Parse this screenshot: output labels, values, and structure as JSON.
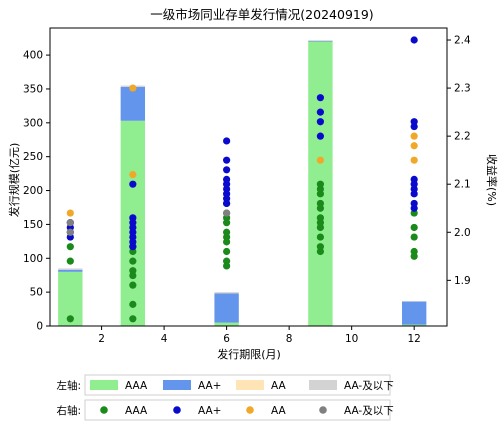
{
  "chart_data": {
    "type": "bar",
    "title": "一级市场同业存单发行情况(20240919)",
    "xlabel": "发行期限(月)",
    "ylabel_left": "发行规模(亿元)",
    "ylabel_right": "收益率(%)",
    "xlim": [
      0.35,
      13.05
    ],
    "ylim_left": [
      0,
      440
    ],
    "ylim_right": [
      1.805,
      2.425
    ],
    "x_ticks": [
      2,
      4,
      6,
      8,
      10,
      12
    ],
    "y_left_ticks": [
      0,
      50,
      100,
      150,
      200,
      250,
      300,
      350,
      400
    ],
    "y_right_ticks": [
      1.9,
      2.0,
      2.1,
      2.2,
      2.3,
      2.4
    ],
    "categories": [
      1,
      3,
      6,
      9,
      12
    ],
    "bar_series": [
      {
        "name": "AAA",
        "color": "#90ee90",
        "values": [
          80,
          303,
          5,
          420,
          2
        ]
      },
      {
        "name": "AA+",
        "color": "#6495ed",
        "values": [
          3,
          50,
          43,
          1,
          34
        ]
      },
      {
        "name": "AA",
        "color": "#ffe4b5",
        "values": [
          0,
          0,
          0,
          0,
          0
        ]
      },
      {
        "name": "AA-及以下",
        "color": "#d3d3d3",
        "values": [
          2,
          2,
          2,
          1,
          1
        ]
      }
    ],
    "scatter_series": [
      {
        "name": "AAA",
        "color": "#1a8a1a",
        "points": [
          [
            1,
            1.82
          ],
          [
            1,
            1.94
          ],
          [
            1,
            1.97
          ],
          [
            3,
            1.82
          ],
          [
            3,
            1.85
          ],
          [
            3,
            1.89
          ],
          [
            3,
            1.91
          ],
          [
            3,
            1.92
          ],
          [
            3,
            1.94
          ],
          [
            3,
            1.96
          ],
          [
            3,
            1.97
          ],
          [
            6,
            1.93
          ],
          [
            6,
            1.94
          ],
          [
            6,
            1.96
          ],
          [
            6,
            1.98
          ],
          [
            6,
            1.99
          ],
          [
            6,
            2.0
          ],
          [
            6,
            2.02
          ],
          [
            6,
            2.03
          ],
          [
            6,
            2.04
          ],
          [
            6,
            2.06
          ],
          [
            9,
            1.96
          ],
          [
            9,
            1.97
          ],
          [
            9,
            1.99
          ],
          [
            9,
            2.01
          ],
          [
            9,
            2.02
          ],
          [
            9,
            2.03
          ],
          [
            9,
            2.05
          ],
          [
            9,
            2.06
          ],
          [
            9,
            2.08
          ],
          [
            9,
            2.09
          ],
          [
            9,
            2.1
          ],
          [
            12,
            1.95
          ],
          [
            12,
            1.96
          ],
          [
            12,
            1.99
          ],
          [
            12,
            2.01
          ],
          [
            12,
            2.04
          ]
        ]
      },
      {
        "name": "AA+",
        "color": "#0a0acd",
        "points": [
          [
            1,
            1.99
          ],
          [
            1,
            2.0
          ],
          [
            1,
            2.01
          ],
          [
            1,
            2.02
          ],
          [
            3,
            1.97
          ],
          [
            3,
            1.98
          ],
          [
            3,
            1.99
          ],
          [
            3,
            2.0
          ],
          [
            3,
            2.01
          ],
          [
            3,
            2.02
          ],
          [
            3,
            2.03
          ],
          [
            3,
            2.1
          ],
          [
            6,
            2.06
          ],
          [
            6,
            2.07
          ],
          [
            6,
            2.08
          ],
          [
            6,
            2.09
          ],
          [
            6,
            2.1
          ],
          [
            6,
            2.11
          ],
          [
            6,
            2.13
          ],
          [
            6,
            2.15
          ],
          [
            6,
            2.19
          ],
          [
            9,
            2.2
          ],
          [
            9,
            2.23
          ],
          [
            9,
            2.25
          ],
          [
            9,
            2.28
          ],
          [
            12,
            2.05
          ],
          [
            12,
            2.06
          ],
          [
            12,
            2.08
          ],
          [
            12,
            2.09
          ],
          [
            12,
            2.1
          ],
          [
            12,
            2.11
          ],
          [
            12,
            2.22
          ],
          [
            12,
            2.23
          ],
          [
            12,
            2.4
          ]
        ]
      },
      {
        "name": "AA",
        "color": "#f0a828",
        "points": [
          [
            1,
            2.04
          ],
          [
            3,
            2.12
          ],
          [
            3,
            2.3
          ],
          [
            9,
            2.15
          ],
          [
            12,
            2.15
          ],
          [
            12,
            2.18
          ],
          [
            12,
            2.2
          ]
        ]
      },
      {
        "name": "AA-及以下",
        "color": "#808080",
        "points": [
          [
            1,
            2.02
          ],
          [
            1,
            2.0
          ],
          [
            6,
            2.04
          ]
        ]
      }
    ],
    "legend": {
      "placement": "bottom",
      "left_label": "左轴:",
      "right_label": "右轴:"
    }
  }
}
